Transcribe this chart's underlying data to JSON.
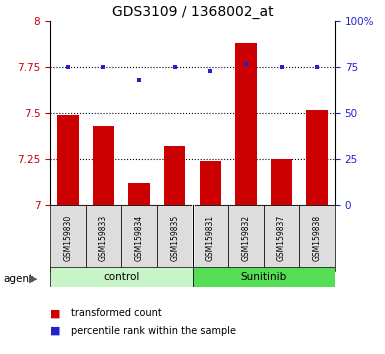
{
  "title": "GDS3109 / 1368002_at",
  "samples": [
    "GSM159830",
    "GSM159833",
    "GSM159834",
    "GSM159835",
    "GSM159831",
    "GSM159832",
    "GSM159837",
    "GSM159838"
  ],
  "red_values": [
    7.49,
    7.43,
    7.12,
    7.32,
    7.24,
    7.88,
    7.25,
    7.52
  ],
  "blue_values": [
    7.75,
    7.75,
    7.68,
    7.75,
    7.73,
    7.77,
    7.75,
    7.75
  ],
  "ylim_left": [
    7.0,
    8.0
  ],
  "ylim_right": [
    0,
    100
  ],
  "yticks_left": [
    7.0,
    7.25,
    7.5,
    7.75,
    8.0
  ],
  "yticks_right": [
    0,
    25,
    50,
    75,
    100
  ],
  "ytick_labels_left": [
    "7",
    "7.25",
    "7.5",
    "7.75",
    "8"
  ],
  "ytick_labels_right": [
    "0",
    "25",
    "50",
    "75",
    "100%"
  ],
  "groups": [
    {
      "label": "control",
      "start": 0,
      "end": 3,
      "color": "#c8f5c8"
    },
    {
      "label": "Sunitinib",
      "start": 4,
      "end": 7,
      "color": "#55dd55"
    }
  ],
  "agent_label": "agent",
  "red_color": "#cc0000",
  "blue_color": "#2222cc",
  "bar_width": 0.6,
  "legend_red_label": "transformed count",
  "legend_blue_label": "percentile rank within the sample",
  "title_fontsize": 10,
  "grid_dotted_at": [
    7.25,
    7.5,
    7.75
  ]
}
